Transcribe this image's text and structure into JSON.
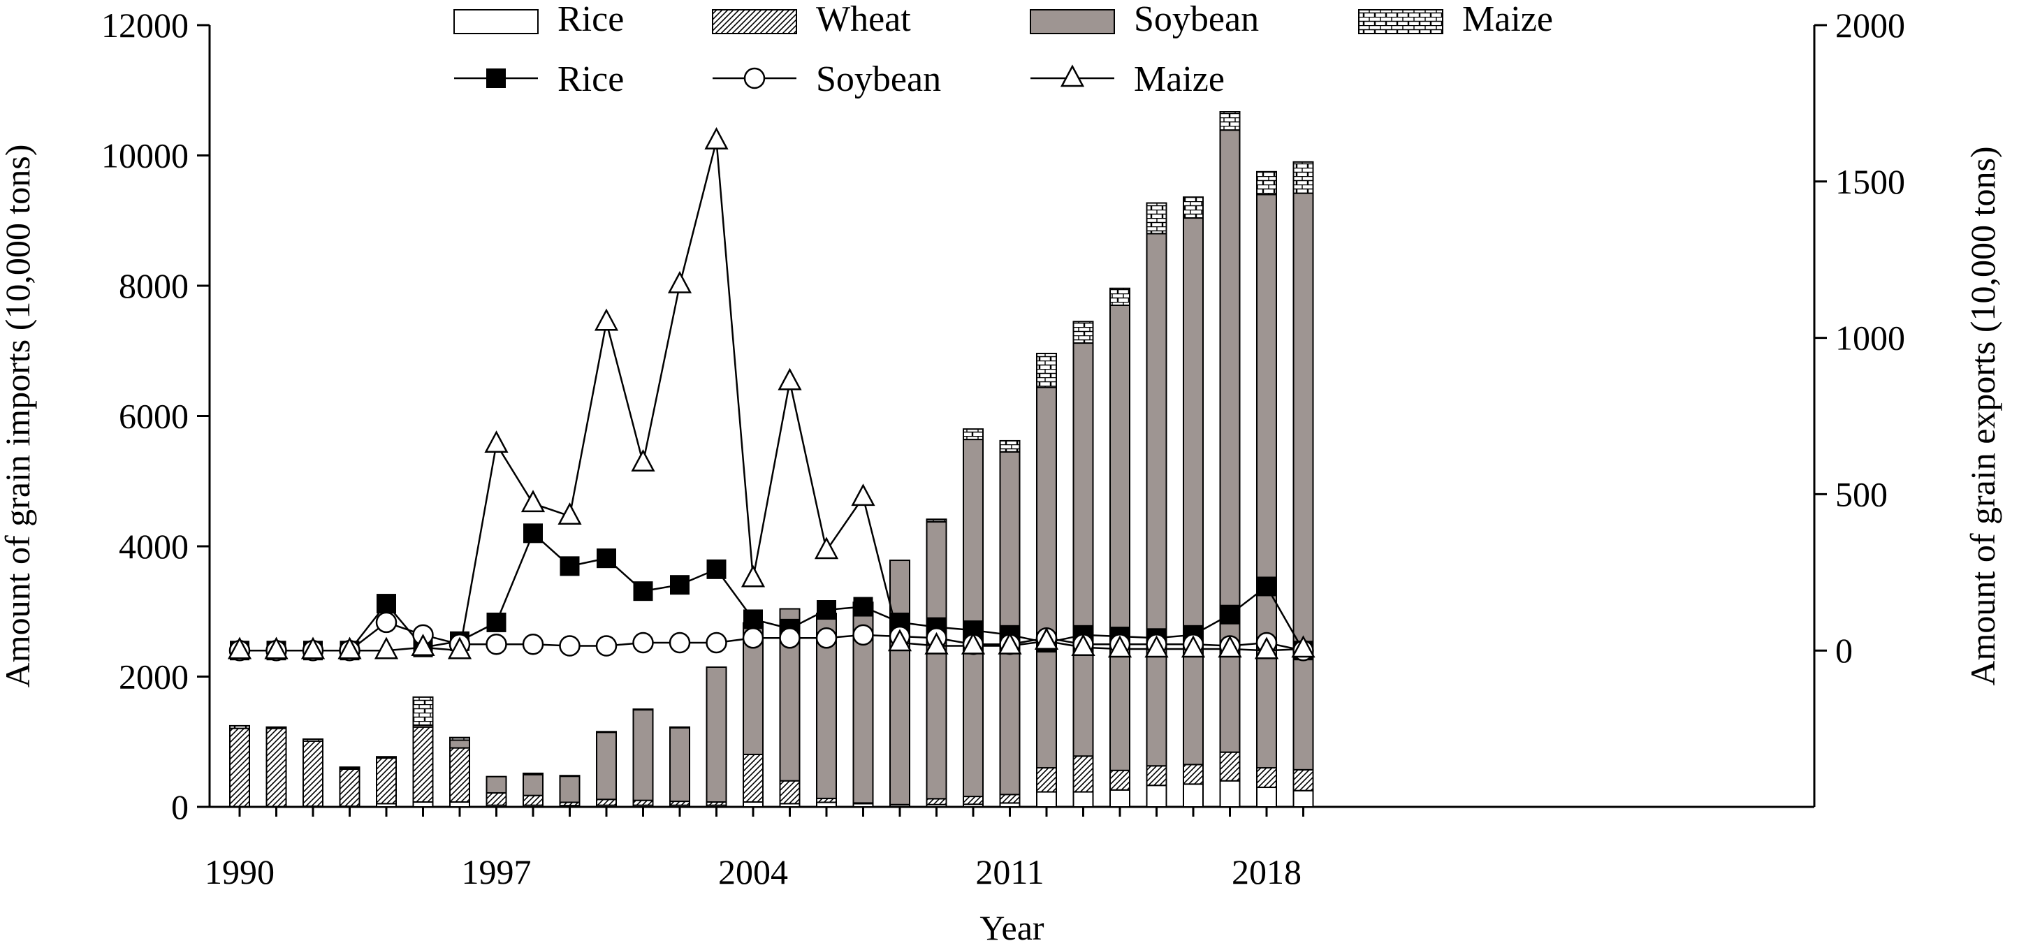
{
  "chart_data": {
    "type": "bar",
    "xlabel": "Year",
    "ylabel": "Amount of grain imports (10,000 tons)",
    "y2label": "Amount of grain exports (10,000 tons)",
    "ylim": [
      0,
      12000
    ],
    "y2lim": [
      -500,
      2000
    ],
    "yticks": [
      0,
      2000,
      4000,
      6000,
      8000,
      10000,
      12000
    ],
    "y2ticks": [
      0,
      500,
      1000,
      1500,
      2000
    ],
    "xticks": [
      "1990",
      "1997",
      "2004",
      "2011",
      "2018"
    ],
    "years": [
      1990,
      1991,
      1992,
      1993,
      1994,
      1995,
      1996,
      1997,
      1998,
      1999,
      2000,
      2001,
      2002,
      2003,
      2004,
      2005,
      2006,
      2007,
      2008,
      2009,
      2010,
      2011,
      2012,
      2013,
      2014,
      2015,
      2016,
      2017,
      2018,
      2019
    ],
    "legend": {
      "imports": [
        "Rice",
        "Wheat",
        "Soybean",
        "Maize"
      ],
      "exports": [
        "Rice",
        "Soybean",
        "Maize"
      ]
    },
    "imports": [
      {
        "name": "Rice",
        "axis": "left",
        "values": [
          5,
          5,
          10,
          10,
          50,
          75,
          75,
          25,
          25,
          20,
          25,
          25,
          25,
          25,
          75,
          50,
          70,
          50,
          30,
          35,
          40,
          60,
          230,
          230,
          260,
          330,
          350,
          400,
          300,
          250
        ]
      },
      {
        "name": "Wheat",
        "axis": "left",
        "values": [
          1200,
          1200,
          1000,
          570,
          700,
          1150,
          830,
          190,
          150,
          50,
          90,
          75,
          60,
          50,
          730,
          350,
          60,
          10,
          5,
          90,
          120,
          130,
          370,
          550,
          300,
          300,
          300,
          440,
          300,
          320
        ]
      },
      {
        "name": "Soybean",
        "axis": "left",
        "values": [
          0,
          0,
          0,
          10,
          0,
          30,
          120,
          250,
          320,
          400,
          1030,
          1390,
          1130,
          2070,
          2020,
          2640,
          2830,
          3080,
          3750,
          4250,
          5480,
          5260,
          5840,
          6340,
          7140,
          8170,
          8390,
          9550,
          8800,
          8850
        ]
      },
      {
        "name": "Maize",
        "axis": "left",
        "values": [
          40,
          20,
          30,
          20,
          20,
          430,
          40,
          0,
          20,
          10,
          10,
          10,
          10,
          0,
          0,
          0,
          10,
          0,
          0,
          40,
          160,
          170,
          520,
          330,
          260,
          470,
          320,
          280,
          350,
          480
        ]
      }
    ],
    "exports": [
      {
        "name": "Rice",
        "axis": "right",
        "values": [
          0,
          0,
          0,
          0,
          150,
          10,
          30,
          90,
          375,
          270,
          295,
          190,
          210,
          260,
          100,
          70,
          130,
          140,
          90,
          75,
          65,
          50,
          25,
          50,
          45,
          40,
          50,
          115,
          205,
          0
        ]
      },
      {
        "name": "Soybean",
        "axis": "right",
        "values": [
          0,
          0,
          0,
          0,
          90,
          50,
          20,
          20,
          20,
          15,
          15,
          25,
          25,
          25,
          40,
          40,
          40,
          50,
          45,
          40,
          20,
          20,
          40,
          20,
          20,
          20,
          20,
          15,
          25,
          0
        ]
      },
      {
        "name": "Maize",
        "axis": "right",
        "values": [
          0,
          0,
          0,
          0,
          0,
          10,
          0,
          660,
          470,
          430,
          1050,
          600,
          1170,
          1630,
          230,
          860,
          320,
          490,
          25,
          15,
          15,
          15,
          30,
          10,
          5,
          5,
          5,
          5,
          0,
          5
        ]
      }
    ]
  }
}
